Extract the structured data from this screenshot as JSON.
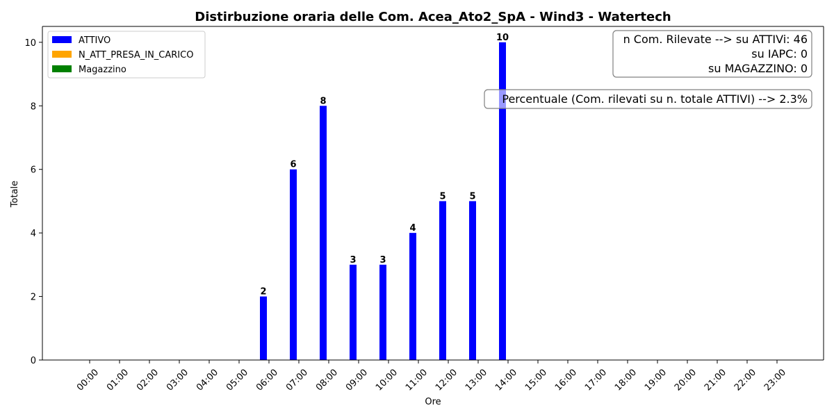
{
  "chart_data": {
    "type": "bar",
    "title": "Distirbuzione oraria delle Com. Acea_Ato2_SpA - Wind3 - Watertech",
    "xlabel": "Ore",
    "ylabel": "Totale",
    "ylim": [
      0,
      10.5
    ],
    "yticks": [
      0,
      2,
      4,
      6,
      8,
      10
    ],
    "categories": [
      "00:00",
      "01:00",
      "02:00",
      "03:00",
      "04:00",
      "05:00",
      "06:00",
      "07:00",
      "08:00",
      "09:00",
      "10:00",
      "11:00",
      "12:00",
      "13:00",
      "14:00",
      "15:00",
      "16:00",
      "17:00",
      "18:00",
      "19:00",
      "20:00",
      "21:00",
      "22:00",
      "23:00"
    ],
    "series": [
      {
        "name": "ATTIVO",
        "color": "#0000ff",
        "values": [
          0,
          0,
          0,
          0,
          0,
          0,
          2,
          6,
          8,
          3,
          3,
          4,
          5,
          5,
          10,
          0,
          0,
          0,
          0,
          0,
          0,
          0,
          0,
          0
        ]
      },
      {
        "name": "N_ATT_PRESA_IN_CARICO",
        "color": "#ffa500",
        "values": [
          0,
          0,
          0,
          0,
          0,
          0,
          0,
          0,
          0,
          0,
          0,
          0,
          0,
          0,
          0,
          0,
          0,
          0,
          0,
          0,
          0,
          0,
          0,
          0
        ]
      },
      {
        "name": "Magazzino",
        "color": "#008000",
        "values": [
          0,
          0,
          0,
          0,
          0,
          0,
          0,
          0,
          0,
          0,
          0,
          0,
          0,
          0,
          0,
          0,
          0,
          0,
          0,
          0,
          0,
          0,
          0,
          0
        ]
      }
    ],
    "legend_position": "top-left",
    "grid": false,
    "annotations": {
      "counts_box": [
        "n Com. Rilevate --> su ATTIVi: 46",
        "su IAPC: 0",
        "su MAGAZZINO: 0"
      ],
      "percent_box": "Percentuale (Com. rilevati su n. totale ATTIVI) --> 2.3%"
    }
  }
}
